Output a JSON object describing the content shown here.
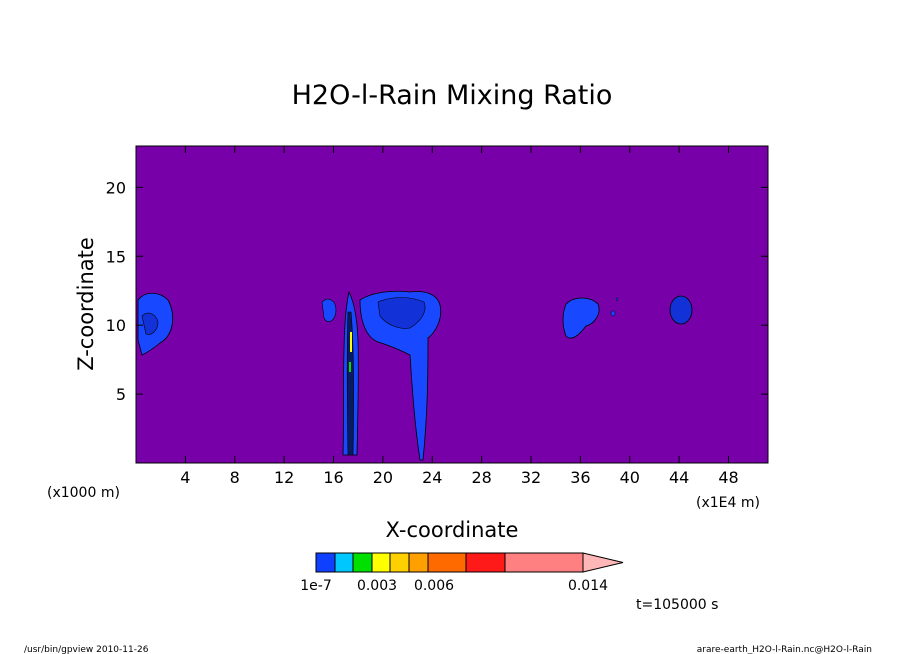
{
  "chart_data": {
    "type": "contour",
    "title": "H2O-l-Rain Mixing Ratio",
    "xlabel": "X-coordinate",
    "ylabel": "Z-coordinate",
    "x_unit_left": "(x1000 m)",
    "x_unit_right": "(x1E4 m)",
    "xlim": [
      0,
      51.2
    ],
    "ylim": [
      0,
      23
    ],
    "x_ticks": [
      4,
      8,
      12,
      16,
      20,
      24,
      28,
      32,
      36,
      40,
      44,
      48
    ],
    "y_ticks": [
      5,
      10,
      15,
      20
    ],
    "background_color": "#7800a8",
    "contour_levels": [
      1e-07,
      0.0015,
      0.003,
      0.0045,
      0.006,
      0.0075,
      0.009,
      0.0115,
      0.014
    ],
    "colorbar": {
      "colors": [
        "#0f40ff",
        "#00c8ff",
        "#00e000",
        "#ffff00",
        "#ffd000",
        "#ffa000",
        "#ff6a00",
        "#ff1a1a",
        "#ff8080",
        "#ffb6b6"
      ],
      "labels": [
        "1e-7",
        "0.003",
        "0.006",
        "0.014"
      ]
    },
    "annotation_time": "t=105000 s",
    "footer_left": "/usr/bin/gpview  2010-11-26",
    "footer_right": "arare-earth_H2O-l-Rain.nc@H2O-l-Rain"
  }
}
